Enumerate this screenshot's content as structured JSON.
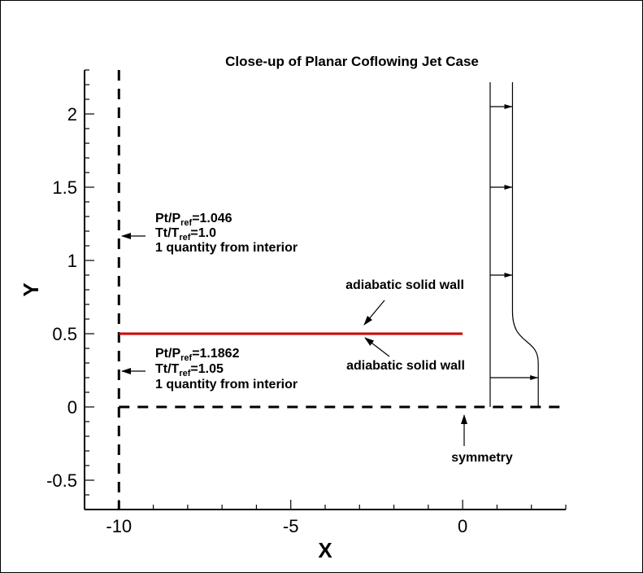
{
  "title": "Close-up of Planar Coflowing Jet Case",
  "axes": {
    "xlabel": "X",
    "ylabel": "Y",
    "xlim": [
      -11,
      3
    ],
    "ylim": [
      -0.7,
      2.3
    ],
    "x_ticks": [
      {
        "value": -10,
        "label": "-10"
      },
      {
        "value": -5,
        "label": "-5"
      },
      {
        "value": 0,
        "label": "0"
      }
    ],
    "y_ticks": [
      {
        "value": -0.5,
        "label": "-0.5"
      },
      {
        "value": 0,
        "label": "0"
      },
      {
        "value": 0.5,
        "label": "0.5"
      },
      {
        "value": 1,
        "label": "1"
      },
      {
        "value": 1.5,
        "label": "1.5"
      },
      {
        "value": 2,
        "label": "2"
      }
    ]
  },
  "upper_inflow": {
    "line1": {
      "base": "Pt/P",
      "sub": "ref",
      "rest": "=1.046"
    },
    "line2": {
      "base": "Tt/T",
      "sub": "ref",
      "rest": "=1.0"
    },
    "line3": "1 quantity from interior"
  },
  "lower_inflow": {
    "line1": {
      "base": "Pt/P",
      "sub": "ref",
      "rest": "=1.1862"
    },
    "line2": {
      "base": "Tt/T",
      "sub": "ref",
      "rest": "=1.05"
    },
    "line3": "1 quantity from interior"
  },
  "wall_label_top": "adiabatic solid wall",
  "wall_label_bottom": "adiabatic solid wall",
  "symmetry_label": "symmetry",
  "colors": {
    "wall": "#cc0000",
    "ink": "#000000"
  },
  "chart_data": {
    "type": "diagram",
    "inflow_boundary_x": -10,
    "symmetry_line_y": 0,
    "wall": {
      "x": [
        -10,
        0
      ],
      "y": 0.5
    },
    "profile": {
      "base_x": 0.8,
      "freestream_x": 1.45,
      "jet_x": 2.2,
      "transition_y": [
        0.3,
        0.65
      ],
      "arrow_y": [
        0.2,
        0.9,
        1.5,
        2.05
      ]
    }
  }
}
